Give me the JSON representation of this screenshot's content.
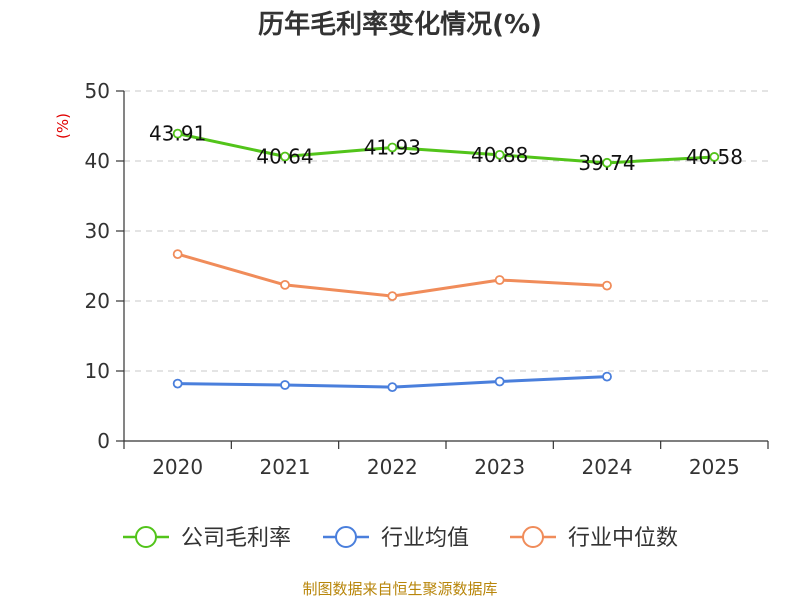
{
  "chart_data": {
    "type": "line",
    "title": "历年毛利率变化情况(%)",
    "ylabel": "(%)",
    "xlabel": "",
    "categories": [
      "2020",
      "2021",
      "2022",
      "2023",
      "2024",
      "2025"
    ],
    "ylim": [
      0,
      50
    ],
    "yticks": [
      0,
      10,
      20,
      30,
      40,
      50
    ],
    "grid": true,
    "legend_position": "bottom",
    "series": [
      {
        "name": "公司毛利率",
        "color": "#52c41a",
        "values": [
          43.91,
          40.64,
          41.93,
          40.88,
          39.74,
          40.58
        ],
        "labels": [
          "43.91",
          "40.64",
          "41.93",
          "40.88",
          "39.74",
          "40.58"
        ]
      },
      {
        "name": "行业均值",
        "color": "#4a7fdc",
        "values": [
          8.2,
          8.0,
          7.7,
          8.5,
          9.2,
          null
        ]
      },
      {
        "name": "行业中位数",
        "color": "#f08c5a",
        "values": [
          26.7,
          22.3,
          20.7,
          23.0,
          22.2,
          null
        ]
      }
    ]
  },
  "source": "制图数据来自恒生聚源数据库"
}
